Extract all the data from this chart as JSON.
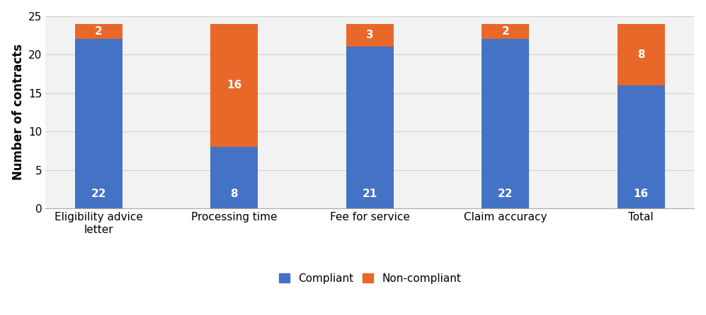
{
  "categories": [
    "Eligibility advice\nletter",
    "Processing time",
    "Fee for service",
    "Claim accuracy",
    "Total"
  ],
  "compliant": [
    22,
    8,
    21,
    22,
    16
  ],
  "non_compliant": [
    2,
    16,
    3,
    2,
    8
  ],
  "compliant_color": "#4472C4",
  "non_compliant_color": "#E8682A",
  "ylabel": "Number of contracts",
  "ylim": [
    0,
    25
  ],
  "yticks": [
    0,
    5,
    10,
    15,
    20,
    25
  ],
  "legend_labels": [
    "Compliant",
    "Non-compliant"
  ],
  "bar_width": 0.35,
  "label_fontsize": 11,
  "axis_label_fontsize": 12,
  "tick_fontsize": 11,
  "legend_fontsize": 11,
  "background_color": "#ffffff",
  "plot_bg_color": "#f2f2f2"
}
